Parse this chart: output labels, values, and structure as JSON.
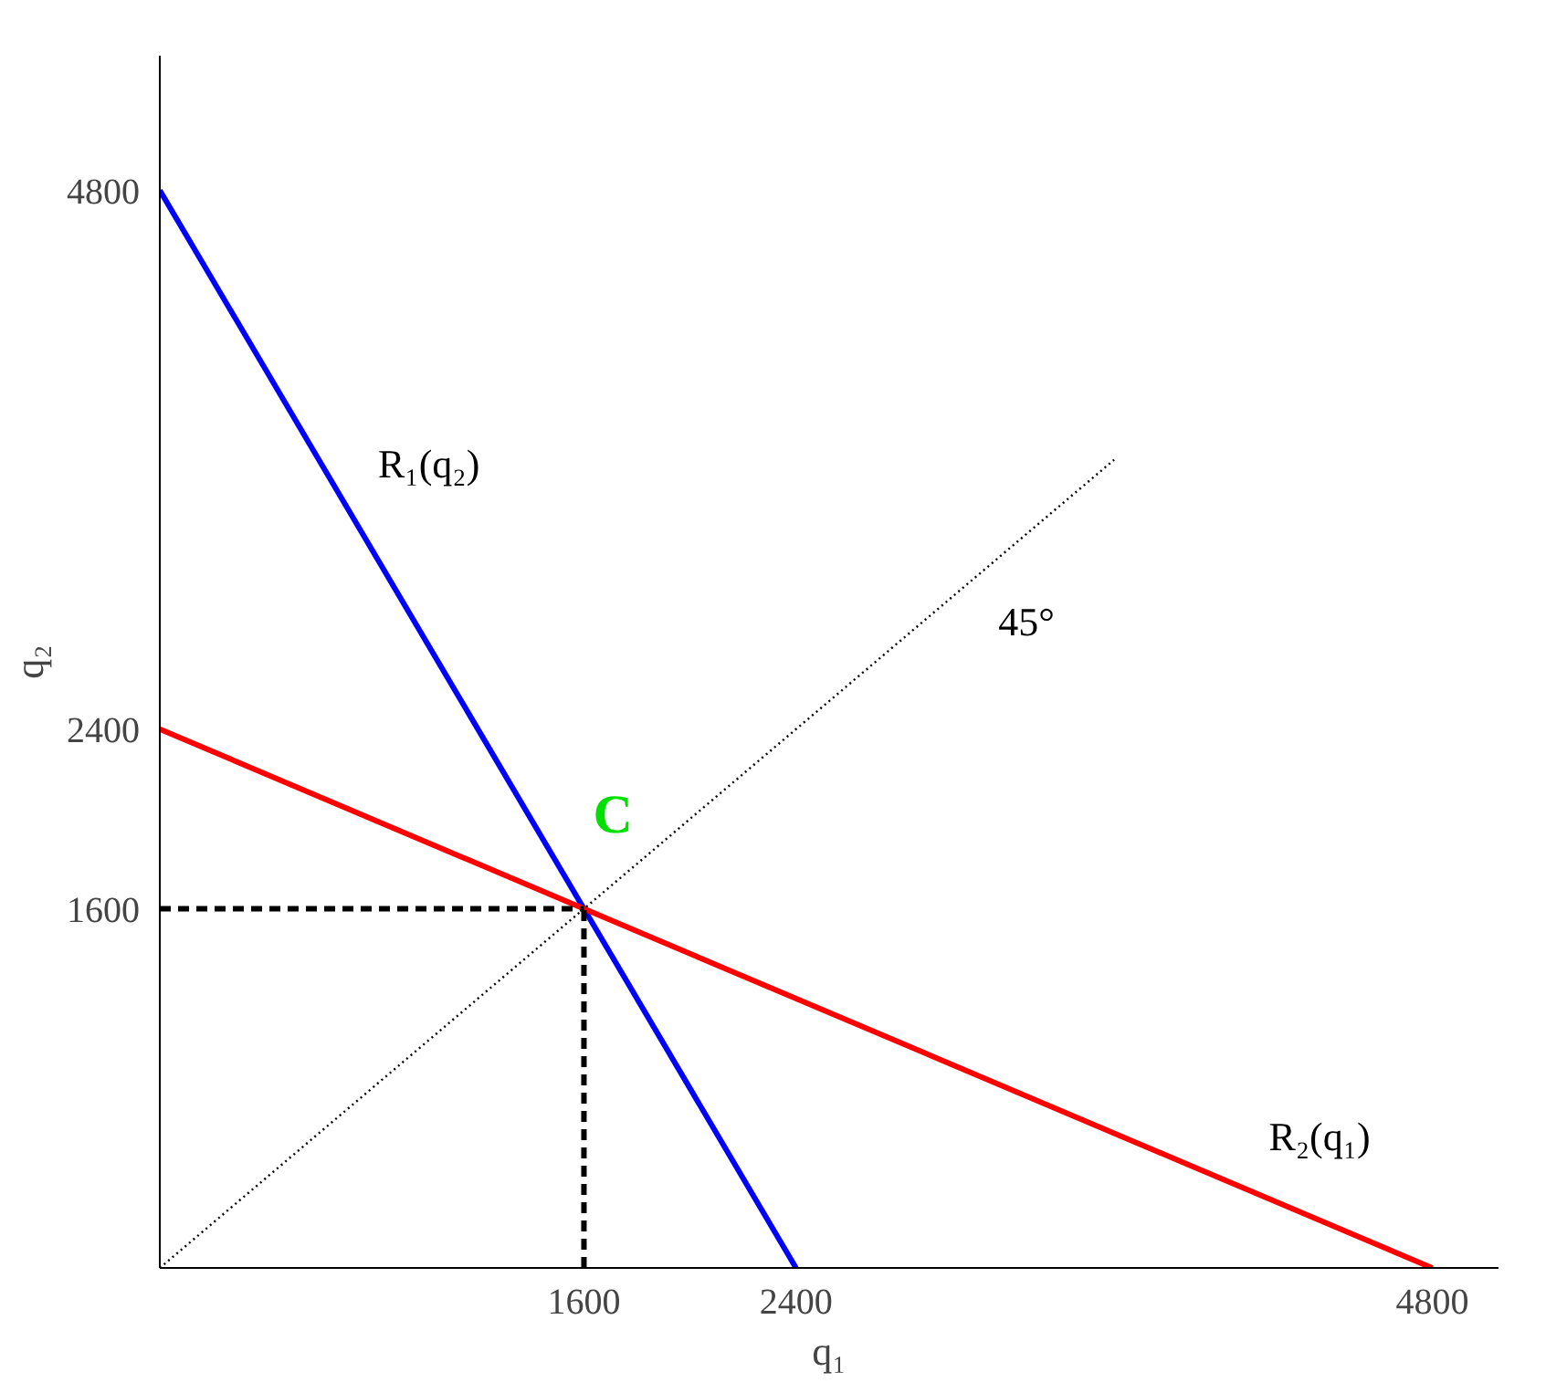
{
  "chart_data": {
    "type": "line",
    "xlabel": "q₁",
    "ylabel": "q₂",
    "series": [
      {
        "name": "R₁(q₂)",
        "color": "#0000ff",
        "x": [
          0,
          2400
        ],
        "values": [
          4800,
          0
        ],
        "line_style": "solid"
      },
      {
        "name": "R₂(q₁)",
        "color": "#ff0000",
        "x": [
          0,
          4800
        ],
        "values": [
          2400,
          0
        ],
        "line_style": "solid"
      },
      {
        "name": "45°",
        "color": "#000000",
        "x": [
          0,
          3600
        ],
        "values": [
          0,
          3600
        ],
        "line_style": "dotted"
      },
      {
        "color": "#000000",
        "x": [
          0,
          1600
        ],
        "values": [
          1600,
          1600
        ],
        "line_style": "dashed"
      },
      {
        "color": "#000000",
        "x": [
          1600,
          1600
        ],
        "values": [
          0,
          1600
        ],
        "line_style": "dashed"
      }
    ],
    "annotations": [
      {
        "text": "C",
        "x": 1600,
        "y": 1600
      }
    ],
    "xlim": [
      0,
      5050
    ],
    "ylim": [
      0,
      5400
    ],
    "xticks": [
      1600,
      2400,
      4800
    ],
    "yticks": [
      1600,
      2400,
      4800
    ],
    "grid": false,
    "marker": "none"
  }
}
